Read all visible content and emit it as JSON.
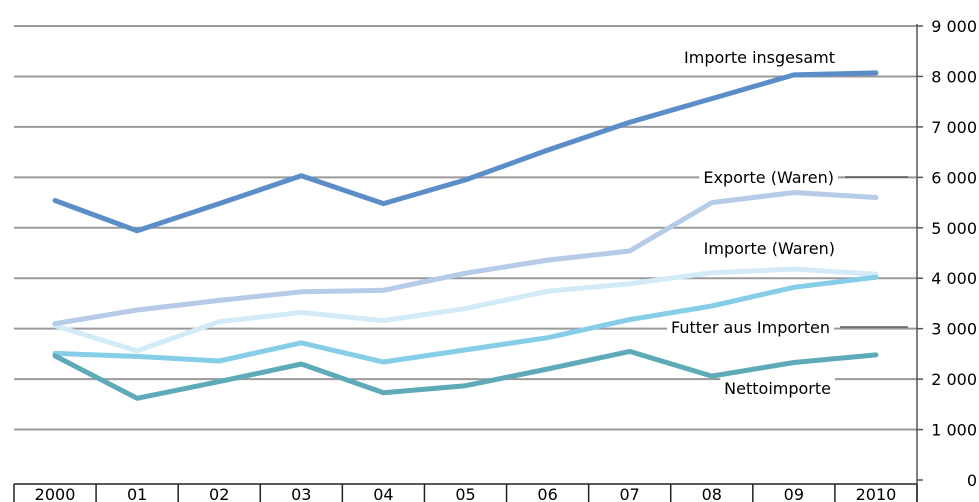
{
  "chart_data": {
    "type": "line",
    "title": "",
    "xlabel": "",
    "ylabel": "",
    "categories": [
      "2000",
      "01",
      "02",
      "03",
      "04",
      "05",
      "06",
      "07",
      "08",
      "09",
      "2010"
    ],
    "ylim": [
      0,
      9000
    ],
    "y_ticks": [
      {
        "value": 0,
        "label": "0"
      },
      {
        "value": 1000,
        "label": "1 000"
      },
      {
        "value": 2000,
        "label": "2 000"
      },
      {
        "value": 3000,
        "label": "3 000"
      },
      {
        "value": 4000,
        "label": "4 000"
      },
      {
        "value": 5000,
        "label": "5 000"
      },
      {
        "value": 6000,
        "label": "6 000"
      },
      {
        "value": 7000,
        "label": "7 000"
      },
      {
        "value": 8000,
        "label": "8 000"
      },
      {
        "value": 9000,
        "label": "9 000"
      }
    ],
    "y_axis_position": "right",
    "grid": true,
    "legend": "inline labels",
    "series": [
      {
        "name": "Importe insgesamt",
        "color": "#5b8ec9",
        "values": [
          5540,
          4940,
          5480,
          6030,
          5480,
          5950,
          6540,
          7090,
          7560,
          8030,
          8070
        ]
      },
      {
        "name": "Exporte (Waren)",
        "color": "#b5cbe8",
        "values": [
          3100,
          3370,
          3560,
          3730,
          3760,
          4100,
          4360,
          4540,
          5500,
          5700,
          5600
        ]
      },
      {
        "name": "Importe (Waren)",
        "color": "#d2ebf7",
        "values": [
          3060,
          2560,
          3140,
          3320,
          3160,
          3400,
          3740,
          3890,
          4110,
          4180,
          4080
        ]
      },
      {
        "name": "Futter aus Importen",
        "color": "#86cde8",
        "values": [
          2510,
          2450,
          2360,
          2720,
          2340,
          2580,
          2820,
          3180,
          3450,
          3820,
          4020
        ]
      },
      {
        "name": "Nettoimporte",
        "color": "#5eaab8",
        "values": [
          2460,
          1620,
          1950,
          2300,
          1730,
          1870,
          2200,
          2550,
          2060,
          2330,
          2480
        ]
      }
    ]
  }
}
